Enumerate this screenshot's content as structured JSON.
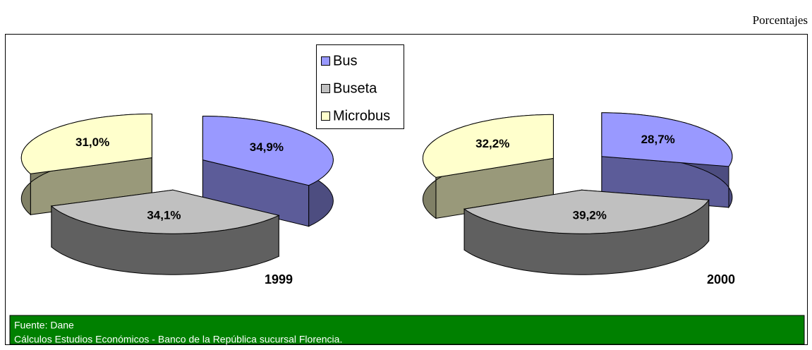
{
  "unit_label": "Porcentajes",
  "chart_data": [
    {
      "type": "pie",
      "title": "1999",
      "categories": [
        "Bus",
        "Buseta",
        "Microbus"
      ],
      "values": [
        34.9,
        34.1,
        31.0
      ],
      "value_labels": [
        "34,9%",
        "34,1%",
        "31,0%"
      ],
      "colors": [
        "#9999ff",
        "#c0c0c0",
        "#ffffcc"
      ]
    },
    {
      "type": "pie",
      "title": "2000",
      "categories": [
        "Bus",
        "Buseta",
        "Microbus"
      ],
      "values": [
        28.7,
        39.2,
        32.2
      ],
      "value_labels": [
        "28,7%",
        "39,2%",
        "32,2%"
      ],
      "colors": [
        "#9999ff",
        "#c0c0c0",
        "#ffffcc"
      ]
    }
  ],
  "source": {
    "lines": [
      "Fuente: Dane",
      "Cálculos Estudios Económicos - Banco de la República sucursal Florencia."
    ]
  }
}
